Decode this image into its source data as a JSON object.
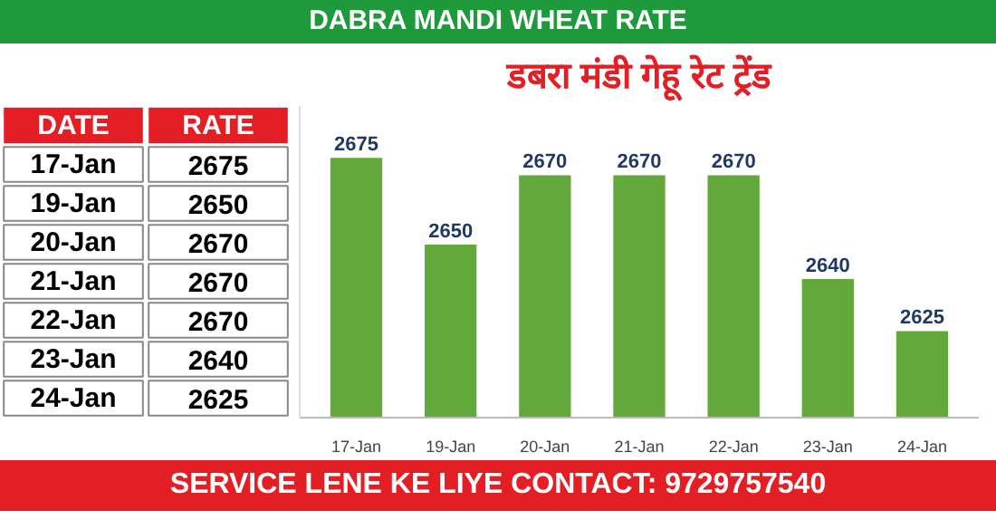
{
  "chart_data": {
    "type": "bar",
    "title": "डबरा मंडी गेहू रेट ट्रेंड",
    "subtitle": "DABRA MANDI WHEAT RATE",
    "categories": [
      "17-Jan",
      "19-Jan",
      "20-Jan",
      "21-Jan",
      "22-Jan",
      "23-Jan",
      "24-Jan"
    ],
    "values": [
      2675,
      2650,
      2670,
      2670,
      2670,
      2640,
      2625
    ],
    "color": "#62a83a",
    "ylim": [
      2600,
      2690
    ],
    "tick_labels": "x",
    "data_labels": true,
    "grid": false,
    "annotations": [
      "DATE",
      "RATE",
      "2675",
      "2650",
      "2670",
      "2670",
      "2670",
      "2640",
      "2625",
      "SERVICE LENE KE LIYE CONTACT: 9729757540"
    ]
  }
}
